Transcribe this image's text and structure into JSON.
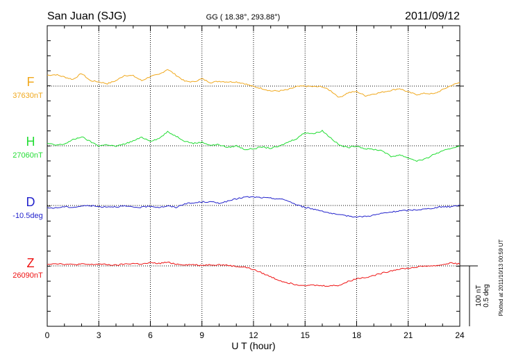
{
  "chart_data": {
    "type": "line",
    "title": "San Juan (SJG)",
    "subtitle": "GG ( 18.38°, 293.88°)",
    "date": "2011/09/12",
    "xlabel": "U T (hour)",
    "xlim": [
      0,
      24
    ],
    "x_ticks": [
      "0",
      "3",
      "6",
      "9",
      "12",
      "15",
      "18",
      "21",
      "24"
    ],
    "scale_label_nt": "100 nT",
    "scale_label_deg": "0.5 deg",
    "scale_nt_per_100": 100,
    "plotted_note": "Plotted at 2011/10/13 00:59 UT",
    "grid": true,
    "x": [
      0,
      0.5,
      1,
      1.5,
      2,
      2.5,
      3,
      3.5,
      4,
      4.5,
      5,
      5.5,
      6,
      6.5,
      7,
      7.5,
      8,
      8.5,
      9,
      9.5,
      10,
      10.5,
      11,
      11.5,
      12,
      12.5,
      13,
      13.5,
      14,
      14.5,
      15,
      15.5,
      16,
      16.5,
      17,
      17.5,
      18,
      18.5,
      19,
      19.5,
      20,
      20.5,
      21,
      21.5,
      22,
      22.5,
      23,
      23.5,
      24
    ],
    "series": [
      {
        "name": "F",
        "baseline_label": "37630nT",
        "color": "#f0a81c",
        "values": [
          18,
          19,
          15,
          11,
          21,
          9,
          7,
          4,
          9,
          18,
          17,
          9,
          16,
          19,
          28,
          18,
          8,
          7,
          12,
          6,
          8,
          7,
          7,
          4,
          -1,
          -4,
          -8,
          -8,
          -6,
          -1,
          0,
          -1,
          -1,
          -8,
          -19,
          -11,
          -9,
          -16,
          -13,
          -10,
          -7,
          -4,
          -10,
          -14,
          -12,
          -13,
          -6,
          1,
          6
        ]
      },
      {
        "name": "H",
        "baseline_label": "27060nT",
        "color": "#22dd33",
        "values": [
          4,
          1,
          3,
          10,
          15,
          7,
          0,
          2,
          -1,
          3,
          8,
          14,
          8,
          12,
          23,
          16,
          8,
          4,
          6,
          1,
          2,
          -3,
          0,
          -6,
          -5,
          -2,
          -4,
          -1,
          6,
          12,
          22,
          20,
          25,
          13,
          1,
          -3,
          0,
          -5,
          -6,
          -8,
          -18,
          -15,
          -20,
          -25,
          -22,
          -14,
          -9,
          -4,
          0
        ]
      },
      {
        "name": "D",
        "baseline_label": "-10.5deg",
        "color": "#2222cc",
        "values": [
          -4,
          -4,
          -2,
          -3,
          -1,
          0,
          -2,
          -2,
          -2,
          -1,
          -3,
          -3,
          -1,
          -3,
          -1,
          -3,
          3,
          4,
          6,
          6,
          4,
          7,
          11,
          14,
          14,
          13,
          12,
          11,
          8,
          1,
          -3,
          -6,
          -9,
          -13,
          -16,
          -17,
          -19,
          -18,
          -16,
          -13,
          -11,
          -9,
          -8,
          -7,
          -6,
          -4,
          -2,
          -2,
          1
        ]
      },
      {
        "name": "Z",
        "baseline_label": "26090nT",
        "color": "#ee1111",
        "values": [
          3,
          4,
          3,
          2,
          3,
          2,
          3,
          2,
          1,
          3,
          4,
          3,
          5,
          4,
          6,
          3,
          2,
          2,
          1,
          2,
          2,
          1,
          -1,
          -2,
          -6,
          -12,
          -18,
          -24,
          -28,
          -31,
          -32,
          -32,
          -33,
          -33,
          -32,
          -26,
          -21,
          -19,
          -16,
          -12,
          -8,
          -5,
          -4,
          -2,
          0,
          0,
          2,
          5,
          3
        ]
      }
    ]
  }
}
